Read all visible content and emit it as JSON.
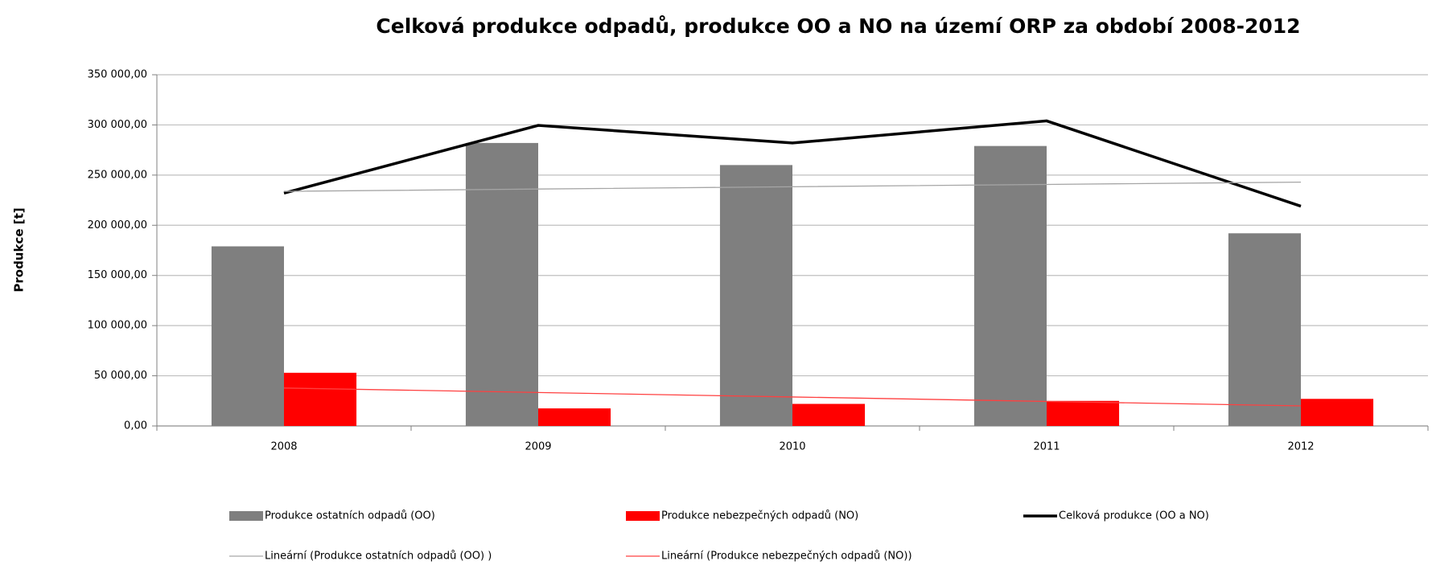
{
  "chart_data": {
    "type": "bar",
    "title": "Celková produkce odpadů, produkce OO a NO na území ORP za období 2008-2012",
    "y_label": "Produkce [t]",
    "categories": [
      "2008",
      "2009",
      "2010",
      "2011",
      "2012"
    ],
    "ylim": [
      0,
      350000
    ],
    "yticks": [
      {
        "value": 0,
        "label": "0,00"
      },
      {
        "value": 50000,
        "label": "50 000,00"
      },
      {
        "value": 100000,
        "label": "100 000,00"
      },
      {
        "value": 150000,
        "label": "150 000,00"
      },
      {
        "value": 200000,
        "label": "200 000,00"
      },
      {
        "value": 250000,
        "label": "250 000,00"
      },
      {
        "value": 300000,
        "label": "300 000,00"
      },
      {
        "value": 350000,
        "label": "350 000,00"
      }
    ],
    "grid": true,
    "series": [
      {
        "name": "Produkce ostatních odpadů (OO)",
        "type": "bar",
        "color": "#7f7f7f",
        "values": [
          179000,
          282000,
          260000,
          279000,
          192000
        ]
      },
      {
        "name": "Produkce nebezpečných odpadů (NO)",
        "type": "bar",
        "color": "#ff0000",
        "values": [
          53000,
          17500,
          22000,
          25000,
          27000
        ]
      },
      {
        "name": "Celková produkce (OO a NO)",
        "type": "line",
        "color": "#000000",
        "values": [
          232000,
          299500,
          282000,
          304000,
          219000
        ]
      },
      {
        "name": "Lineární (Produkce ostatních odpadů (OO) )",
        "type": "trend",
        "color": "#a6a6a6",
        "values": [
          233800,
          236100,
          238400,
          240700,
          243000
        ]
      },
      {
        "name": "Lineární (Produkce nebezpečných odpadů (NO))",
        "type": "trend",
        "color": "#ff4040",
        "values": [
          37800,
          33350,
          28900,
          24450,
          20000
        ]
      }
    ]
  }
}
